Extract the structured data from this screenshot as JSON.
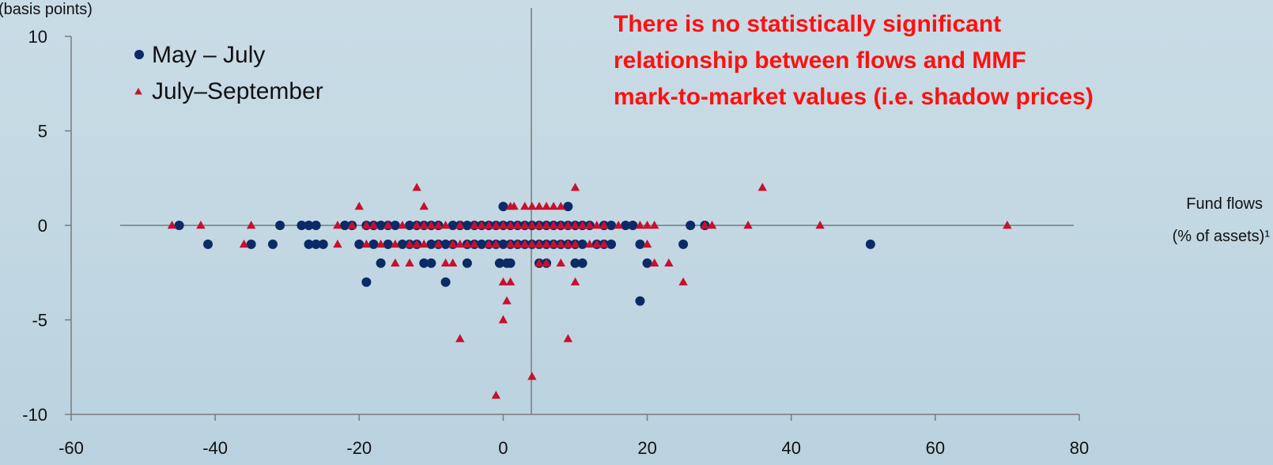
{
  "chart_data": {
    "type": "scatter",
    "ylabel": "(basis points)",
    "xlabel": [
      "Fund flows",
      "(% of assets)¹"
    ],
    "xlim": [
      -60,
      80
    ],
    "ylim": [
      -10,
      10
    ],
    "x_ticks": [
      "-60",
      "-40",
      "-20",
      "0",
      "20",
      "40",
      "60",
      "80"
    ],
    "y_ticks": [
      "10",
      "5",
      "0",
      "-5",
      "-10"
    ],
    "grid": false,
    "legend_placement": "top-left",
    "annotation": [
      "There is no statistically significant",
      "relationship between flows and MMF",
      "mark-to-market values (i.e. shadow prices)"
    ],
    "colors": {
      "may_july": "#0b2a66",
      "july_sept": "#c8102e",
      "annotation": "#ff1010",
      "axis": "#7a7a7a"
    },
    "series": [
      {
        "name": "May – July",
        "marker": "circle",
        "points": [
          [
            -45,
            0
          ],
          [
            -41,
            -1
          ],
          [
            -35,
            -1
          ],
          [
            -32,
            -1
          ],
          [
            -31,
            0
          ],
          [
            -28,
            0
          ],
          [
            -27,
            0
          ],
          [
            -26,
            0
          ],
          [
            -27,
            -1
          ],
          [
            -26,
            -1
          ],
          [
            -25,
            -1
          ],
          [
            -22,
            0
          ],
          [
            -21,
            0
          ],
          [
            -19,
            0
          ],
          [
            -18,
            0
          ],
          [
            -17,
            0
          ],
          [
            -16,
            0
          ],
          [
            -15,
            0
          ],
          [
            -13,
            0
          ],
          [
            -12,
            0
          ],
          [
            -11,
            0
          ],
          [
            -10,
            0
          ],
          [
            -9,
            0
          ],
          [
            -7,
            0
          ],
          [
            -6,
            0
          ],
          [
            -5,
            0
          ],
          [
            -4,
            0
          ],
          [
            -3,
            0
          ],
          [
            -2,
            0
          ],
          [
            -1,
            0
          ],
          [
            0,
            0
          ],
          [
            1,
            0
          ],
          [
            2,
            0
          ],
          [
            3,
            0
          ],
          [
            4,
            0
          ],
          [
            5,
            0
          ],
          [
            6,
            0
          ],
          [
            7,
            0
          ],
          [
            8,
            0
          ],
          [
            9,
            0
          ],
          [
            10,
            0
          ],
          [
            11,
            0
          ],
          [
            12,
            0
          ],
          [
            14,
            0
          ],
          [
            15,
            0
          ],
          [
            17,
            0
          ],
          [
            18,
            0
          ],
          [
            -20,
            -1
          ],
          [
            -18,
            -1
          ],
          [
            -16,
            -1
          ],
          [
            -14,
            -1
          ],
          [
            -13,
            -1
          ],
          [
            -12,
            -1
          ],
          [
            -10,
            -1
          ],
          [
            -9,
            -1
          ],
          [
            -8,
            -1
          ],
          [
            -7,
            -1
          ],
          [
            -5,
            -1
          ],
          [
            -4,
            -1
          ],
          [
            -3,
            -1
          ],
          [
            -2,
            -1
          ],
          [
            -1,
            -1
          ],
          [
            0,
            -1
          ],
          [
            1,
            -1
          ],
          [
            2,
            -1
          ],
          [
            3,
            -1
          ],
          [
            4,
            -1
          ],
          [
            5,
            -1
          ],
          [
            6,
            -1
          ],
          [
            7,
            -1
          ],
          [
            8,
            -1
          ],
          [
            9,
            -1
          ],
          [
            10,
            -1
          ],
          [
            11,
            -1
          ],
          [
            13,
            -1
          ],
          [
            14,
            -1
          ],
          [
            15,
            -1
          ],
          [
            19,
            -1
          ],
          [
            25,
            -1
          ],
          [
            51,
            -1
          ],
          [
            26,
            0
          ],
          [
            28,
            0
          ],
          [
            -17,
            -2
          ],
          [
            -11,
            -2
          ],
          [
            -10,
            -2
          ],
          [
            -5,
            -2
          ],
          [
            -0.5,
            -2
          ],
          [
            0.5,
            -2
          ],
          [
            1,
            -2
          ],
          [
            5,
            -2
          ],
          [
            6,
            -2
          ],
          [
            10,
            -2
          ],
          [
            11,
            -2
          ],
          [
            20,
            -2
          ],
          [
            -19,
            -3
          ],
          [
            -8,
            -3
          ],
          [
            19,
            -4
          ],
          [
            0,
            1
          ],
          [
            9,
            1
          ]
        ]
      },
      {
        "name": "July–September",
        "marker": "triangle",
        "points": [
          [
            -46,
            0
          ],
          [
            -42,
            0
          ],
          [
            -35,
            0
          ],
          [
            -23,
            0
          ],
          [
            -21,
            0
          ],
          [
            -19,
            0
          ],
          [
            -18,
            0
          ],
          [
            -16,
            0
          ],
          [
            -14,
            0
          ],
          [
            -12,
            0
          ],
          [
            -11,
            0
          ],
          [
            -10,
            0
          ],
          [
            -9,
            0
          ],
          [
            -8,
            0
          ],
          [
            -6,
            0
          ],
          [
            -4,
            0
          ],
          [
            -3,
            0
          ],
          [
            -2,
            0
          ],
          [
            -1,
            0
          ],
          [
            0,
            0
          ],
          [
            1,
            0
          ],
          [
            2,
            0
          ],
          [
            3,
            0
          ],
          [
            4,
            0
          ],
          [
            5,
            0
          ],
          [
            6,
            0
          ],
          [
            7,
            0
          ],
          [
            8,
            0
          ],
          [
            9,
            0
          ],
          [
            10,
            0
          ],
          [
            11,
            0
          ],
          [
            12,
            0
          ],
          [
            13,
            0
          ],
          [
            14,
            0
          ],
          [
            16,
            0
          ],
          [
            19,
            0
          ],
          [
            20,
            0
          ],
          [
            21,
            0
          ],
          [
            28,
            0
          ],
          [
            29,
            0
          ],
          [
            34,
            0
          ],
          [
            44,
            0
          ],
          [
            70,
            0
          ],
          [
            -36,
            -1
          ],
          [
            -23,
            -1
          ],
          [
            -19,
            -1
          ],
          [
            -17,
            -1
          ],
          [
            -15,
            -1
          ],
          [
            -13,
            -1
          ],
          [
            -12,
            -1
          ],
          [
            -11,
            -1
          ],
          [
            -9,
            -1
          ],
          [
            -7,
            -1
          ],
          [
            -6,
            -1
          ],
          [
            -5,
            -1
          ],
          [
            -4,
            -1
          ],
          [
            -2,
            -1
          ],
          [
            -1,
            -1
          ],
          [
            1,
            -1
          ],
          [
            2,
            -1
          ],
          [
            3,
            -1
          ],
          [
            4,
            -1
          ],
          [
            5,
            -1
          ],
          [
            6,
            -1
          ],
          [
            7,
            -1
          ],
          [
            8,
            -1
          ],
          [
            9,
            -1
          ],
          [
            10,
            -1
          ],
          [
            12,
            -1
          ],
          [
            13,
            -1
          ],
          [
            14,
            -1
          ],
          [
            20,
            -1
          ],
          [
            -15,
            -2
          ],
          [
            -13,
            -2
          ],
          [
            -8,
            -2
          ],
          [
            -7,
            -2
          ],
          [
            5,
            -2
          ],
          [
            6,
            -2
          ],
          [
            8,
            -2
          ],
          [
            21,
            -2
          ],
          [
            23,
            -2
          ],
          [
            -20,
            1
          ],
          [
            -11,
            1
          ],
          [
            1,
            1
          ],
          [
            1.5,
            1
          ],
          [
            3,
            1
          ],
          [
            4,
            1
          ],
          [
            5,
            1
          ],
          [
            6,
            1
          ],
          [
            7,
            1
          ],
          [
            8,
            1
          ],
          [
            -12,
            2
          ],
          [
            10,
            2
          ],
          [
            36,
            2
          ],
          [
            0,
            -3
          ],
          [
            1,
            -3
          ],
          [
            10,
            -3
          ],
          [
            25,
            -3
          ],
          [
            0.5,
            -4
          ],
          [
            0,
            -5
          ],
          [
            -6,
            -6
          ],
          [
            9,
            -6
          ],
          [
            4,
            -8
          ],
          [
            -1,
            -9
          ]
        ]
      }
    ]
  }
}
